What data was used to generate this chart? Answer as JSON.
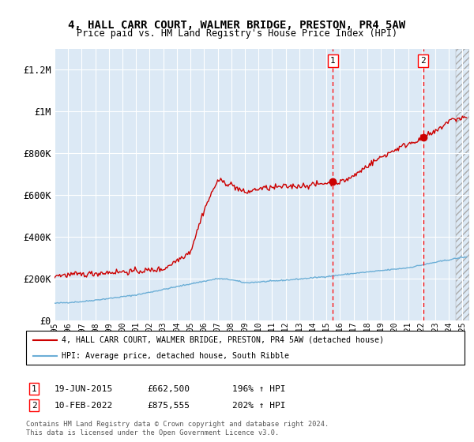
{
  "title": "4, HALL CARR COURT, WALMER BRIDGE, PRESTON, PR4 5AW",
  "subtitle": "Price paid vs. HM Land Registry's House Price Index (HPI)",
  "ylim": [
    0,
    1300000
  ],
  "yticks": [
    0,
    200000,
    400000,
    600000,
    800000,
    1000000,
    1200000
  ],
  "ytick_labels": [
    "£0",
    "£200K",
    "£400K",
    "£600K",
    "£800K",
    "£1M",
    "£1.2M"
  ],
  "background_color": "#dce9f5",
  "grid_color": "#ffffff",
  "hpi_color": "#6baed6",
  "price_color": "#cc0000",
  "sale1_x": 2015.47,
  "sale1_y": 662500,
  "sale2_x": 2022.11,
  "sale2_y": 875555,
  "legend_line1": "4, HALL CARR COURT, WALMER BRIDGE, PRESTON, PR4 5AW (detached house)",
  "legend_line2": "HPI: Average price, detached house, South Ribble",
  "sale1_date": "19-JUN-2015",
  "sale1_price": "£662,500",
  "sale1_hpi": "196% ↑ HPI",
  "sale2_date": "10-FEB-2022",
  "sale2_price": "£875,555",
  "sale2_hpi": "202% ↑ HPI",
  "footer": "Contains HM Land Registry data © Crown copyright and database right 2024.\nThis data is licensed under the Open Government Licence v3.0.",
  "xmin": 1995,
  "xmax": 2025.5
}
